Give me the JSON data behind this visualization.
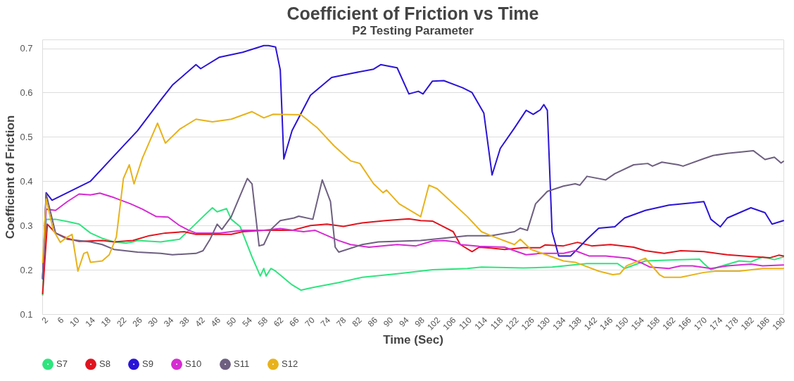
{
  "chart_data": {
    "type": "line",
    "title": "Coefficient of Friction vs Time",
    "subtitle": "P2 Testing Parameter",
    "xlabel": "Time (Sec)",
    "ylabel": "Coefficient of Friction",
    "xlim": [
      1,
      190
    ],
    "xticks": [
      2,
      6,
      10,
      14,
      18,
      22,
      26,
      30,
      34,
      38,
      42,
      46,
      50,
      54,
      58,
      62,
      66,
      70,
      74,
      78,
      82,
      86,
      90,
      94,
      98,
      102,
      106,
      110,
      114,
      118,
      122,
      126,
      130,
      134,
      138,
      142,
      146,
      150,
      154,
      158,
      162,
      166,
      170,
      174,
      178,
      182,
      186,
      190
    ],
    "ylim": [
      0.1,
      0.72
    ],
    "yticks": [
      0.1,
      0.2,
      0.3,
      0.4,
      0.5,
      0.6,
      0.7
    ],
    "grid": "y",
    "legend": "bottom",
    "marker": "none",
    "line_style": "solid",
    "series": [
      {
        "name": "S7",
        "color": "#2ee57e",
        "x": [
          1.1,
          2,
          4.4,
          7.4,
          10.4,
          13.3,
          16.3,
          19.3,
          22.3,
          24.1,
          25.3,
          31.2,
          36,
          38.4,
          42,
          44.4,
          45.6,
          48,
          49.2,
          51.5,
          54.5,
          56.6,
          57.5,
          58.1,
          59.3,
          60.5,
          64.7,
          67,
          70,
          76.6,
          82.6,
          91.5,
          100.5,
          109.4,
          113,
          123.7,
          131,
          139.9,
          147.7,
          149.5,
          154.8,
          163.8,
          168.6,
          169.7,
          171.5,
          173.3,
          178.7,
          181.7,
          184.7,
          187.7,
          190
        ],
        "values": [
          0.143,
          0.314,
          0.314,
          0.309,
          0.303,
          0.283,
          0.271,
          0.263,
          0.26,
          0.263,
          0.266,
          0.263,
          0.269,
          0.289,
          0.32,
          0.34,
          0.331,
          0.338,
          0.314,
          0.297,
          0.229,
          0.186,
          0.203,
          0.186,
          0.203,
          0.197,
          0.166,
          0.154,
          0.16,
          0.171,
          0.183,
          0.191,
          0.2,
          0.203,
          0.206,
          0.204,
          0.206,
          0.214,
          0.214,
          0.203,
          0.22,
          0.223,
          0.224,
          0.214,
          0.2,
          0.206,
          0.22,
          0.218,
          0.229,
          0.223,
          0.229
        ]
      },
      {
        "name": "S8",
        "color": "#e0141e",
        "x": [
          1.1,
          2.3,
          4.4,
          7.4,
          10.4,
          16.3,
          19.3,
          24.1,
          28.3,
          32.4,
          37.2,
          40.2,
          49.2,
          52.1,
          57.5,
          64.7,
          69.4,
          73.6,
          77.8,
          82.6,
          88.5,
          94.5,
          97.5,
          100.5,
          103.4,
          105.8,
          107.6,
          110.6,
          112.4,
          115.4,
          118.9,
          123.7,
          128,
          129.2,
          133.9,
          137.5,
          141.1,
          145.9,
          151.8,
          154.8,
          159.6,
          163.8,
          169.7,
          175.7,
          181.7,
          186.5,
          188.8,
          190
        ],
        "values": [
          0.146,
          0.303,
          0.283,
          0.271,
          0.264,
          0.266,
          0.263,
          0.266,
          0.277,
          0.283,
          0.286,
          0.28,
          0.28,
          0.286,
          0.289,
          0.289,
          0.3,
          0.303,
          0.298,
          0.306,
          0.311,
          0.315,
          0.311,
          0.31,
          0.297,
          0.286,
          0.257,
          0.241,
          0.251,
          0.249,
          0.246,
          0.25,
          0.25,
          0.256,
          0.254,
          0.262,
          0.254,
          0.257,
          0.251,
          0.243,
          0.237,
          0.243,
          0.241,
          0.234,
          0.23,
          0.227,
          0.233,
          0.231
        ]
      },
      {
        "name": "S9",
        "color": "#2b14d6",
        "x": [
          1.1,
          2,
          3.5,
          7.4,
          13.3,
          19.3,
          25.3,
          31.2,
          34.2,
          40.2,
          41.4,
          46.2,
          52.1,
          57.5,
          58.7,
          60.5,
          61.7,
          62.6,
          64.7,
          69.4,
          74.8,
          79.6,
          85.5,
          87.3,
          91.5,
          94.5,
          96.9,
          98.1,
          100.5,
          103.4,
          108.2,
          110.6,
          113.6,
          115.7,
          117.8,
          121.4,
          124.4,
          126.2,
          128,
          128.9,
          129.8,
          131,
          132.7,
          135.7,
          139.9,
          142.9,
          147,
          149.5,
          154.8,
          160.8,
          166.8,
          169.7,
          171.5,
          173.9,
          175.7,
          181.7,
          185.3,
          187.1,
          190
        ],
        "values": [
          0.18,
          0.374,
          0.357,
          0.374,
          0.4,
          0.457,
          0.514,
          0.583,
          0.617,
          0.663,
          0.654,
          0.68,
          0.691,
          0.706,
          0.706,
          0.703,
          0.651,
          0.45,
          0.514,
          0.594,
          0.634,
          0.643,
          0.653,
          0.663,
          0.656,
          0.597,
          0.603,
          0.597,
          0.626,
          0.627,
          0.611,
          0.6,
          0.554,
          0.414,
          0.474,
          0.52,
          0.56,
          0.551,
          0.561,
          0.573,
          0.56,
          0.286,
          0.231,
          0.231,
          0.269,
          0.294,
          0.297,
          0.317,
          0.334,
          0.346,
          0.351,
          0.354,
          0.314,
          0.297,
          0.317,
          0.34,
          0.329,
          0.303,
          0.311
        ]
      },
      {
        "name": "S10",
        "color": "#d62bd2",
        "x": [
          1.1,
          2,
          4.4,
          7.4,
          10.4,
          13.3,
          15.7,
          19.3,
          23.5,
          26.5,
          30.1,
          33.1,
          36,
          38.4,
          40.2,
          46.2,
          52.1,
          57.5,
          61.7,
          67.6,
          70.6,
          76.6,
          79.6,
          84.3,
          91.5,
          96.3,
          100.5,
          103.4,
          106.4,
          107.6,
          112.4,
          118.9,
          121.4,
          124.4,
          128,
          133.9,
          136.9,
          140.5,
          144.7,
          150.6,
          154.2,
          156,
          160.8,
          163.8,
          166.8,
          171.5,
          175.7,
          181.7,
          184.7,
          190
        ],
        "values": [
          0.183,
          0.337,
          0.334,
          0.354,
          0.371,
          0.369,
          0.373,
          0.363,
          0.349,
          0.337,
          0.32,
          0.319,
          0.3,
          0.289,
          0.283,
          0.283,
          0.289,
          0.289,
          0.293,
          0.286,
          0.289,
          0.266,
          0.257,
          0.251,
          0.257,
          0.254,
          0.265,
          0.266,
          0.263,
          0.257,
          0.253,
          0.251,
          0.243,
          0.234,
          0.237,
          0.237,
          0.243,
          0.231,
          0.231,
          0.226,
          0.214,
          0.206,
          0.203,
          0.209,
          0.209,
          0.203,
          0.209,
          0.213,
          0.209,
          0.211
        ]
      },
      {
        "name": "S11",
        "color": "#6e5f80",
        "x": [
          1.1,
          2,
          4.4,
          7.4,
          13.3,
          16.3,
          19.3,
          25.3,
          31.2,
          34.2,
          40.2,
          42,
          43.8,
          45.6,
          46.8,
          49.2,
          53.3,
          54.5,
          56.3,
          57.5,
          59.3,
          61.7,
          65.2,
          66.4,
          70,
          72.4,
          74.5,
          75.7,
          76.6,
          82.6,
          86.7,
          97.5,
          106.4,
          109.4,
          115.4,
          121.4,
          122.9,
          124.7,
          126.8,
          129.8,
          133.9,
          136.9,
          138.1,
          139.9,
          144.7,
          147,
          151.8,
          155.4,
          156.6,
          159,
          163.2,
          164.4,
          169.7,
          172.1,
          175.7,
          179.3,
          182.3,
          185.3,
          187.7,
          189.4,
          190
        ],
        "values": [
          0.18,
          0.371,
          0.283,
          0.269,
          0.263,
          0.257,
          0.246,
          0.24,
          0.237,
          0.234,
          0.237,
          0.243,
          0.269,
          0.303,
          0.291,
          0.32,
          0.406,
          0.394,
          0.254,
          0.257,
          0.291,
          0.311,
          0.317,
          0.321,
          0.314,
          0.403,
          0.354,
          0.251,
          0.24,
          0.257,
          0.263,
          0.266,
          0.274,
          0.277,
          0.277,
          0.286,
          0.294,
          0.289,
          0.349,
          0.377,
          0.389,
          0.394,
          0.391,
          0.411,
          0.403,
          0.417,
          0.437,
          0.44,
          0.434,
          0.443,
          0.437,
          0.434,
          0.451,
          0.458,
          0.463,
          0.466,
          0.469,
          0.449,
          0.454,
          0.441,
          0.445
        ]
      },
      {
        "name": "S12",
        "color": "#e8b21a",
        "x": [
          1.1,
          2,
          3.8,
          5.6,
          7.4,
          8.6,
          10.1,
          11.6,
          12.5,
          13.3,
          16.3,
          18.1,
          19.9,
          21.7,
          23.2,
          24.4,
          26.5,
          30.4,
          32.4,
          36,
          40.2,
          44.4,
          49.2,
          54.5,
          57.5,
          59.9,
          67,
          71.2,
          75.4,
          79.6,
          82,
          85.5,
          87.9,
          88.8,
          92,
          97.5,
          99.6,
          101.7,
          109.4,
          113,
          115.4,
          121.4,
          122.9,
          125.6,
          133.9,
          136.9,
          142.9,
          146.5,
          148.3,
          150,
          154.8,
          158.4,
          159.6,
          163.8,
          169.7,
          172.7,
          178.7,
          184.7,
          190
        ],
        "values": [
          0.217,
          0.36,
          0.29,
          0.262,
          0.274,
          0.28,
          0.197,
          0.237,
          0.24,
          0.217,
          0.22,
          0.234,
          0.274,
          0.406,
          0.437,
          0.394,
          0.451,
          0.531,
          0.486,
          0.517,
          0.54,
          0.534,
          0.54,
          0.557,
          0.543,
          0.551,
          0.55,
          0.52,
          0.48,
          0.446,
          0.44,
          0.394,
          0.374,
          0.38,
          0.349,
          0.32,
          0.391,
          0.383,
          0.32,
          0.286,
          0.277,
          0.257,
          0.269,
          0.246,
          0.22,
          0.217,
          0.197,
          0.189,
          0.191,
          0.209,
          0.226,
          0.189,
          0.183,
          0.183,
          0.194,
          0.197,
          0.197,
          0.203,
          0.203
        ]
      }
    ]
  }
}
